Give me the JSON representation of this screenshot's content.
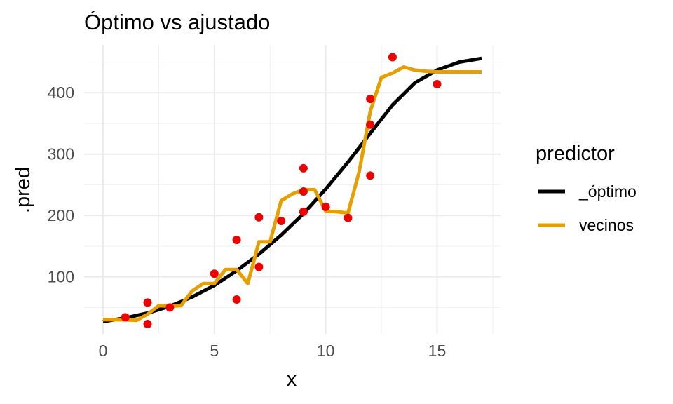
{
  "chart_data": {
    "type": "line",
    "title": "Óptimo vs ajustado",
    "xlabel": "x",
    "ylabel": ".pred",
    "xlim": [
      -0.85,
      17.85
    ],
    "ylim": [
      7,
      478
    ],
    "x_ticks": [
      0,
      5,
      10,
      15
    ],
    "x_tick_labels": [
      "0",
      "5",
      "10",
      "15"
    ],
    "y_ticks": [
      100,
      200,
      300,
      400
    ],
    "y_tick_labels": [
      "100",
      "200",
      "300",
      "400"
    ],
    "grid": true,
    "legend_title": "predictor",
    "legend_position": "right",
    "series": [
      {
        "name": "_óptimo",
        "color": "#000000",
        "x": [
          0,
          1,
          2,
          3,
          4,
          5,
          6,
          7,
          8,
          9,
          10,
          11,
          12,
          13,
          14,
          15,
          16,
          17
        ],
        "y": [
          27,
          33,
          41,
          52,
          67,
          86,
          110,
          137,
          168,
          203,
          243,
          287,
          334,
          380,
          416,
          437,
          450,
          456
        ]
      },
      {
        "name": "vecinos",
        "color": "#E69F00",
        "x": [
          0,
          0.5,
          1,
          1.5,
          2,
          2.5,
          3,
          3.5,
          4,
          4.5,
          5,
          5.5,
          6,
          6.5,
          7,
          7.5,
          8,
          8.5,
          9,
          9.5,
          10,
          10.5,
          11,
          11.5,
          12,
          12.5,
          13,
          13.5,
          14,
          14.5,
          15,
          15.5,
          16,
          16.5,
          17
        ],
        "y": [
          30,
          30,
          30,
          29,
          39,
          53,
          52,
          53,
          77,
          89,
          89,
          112,
          112,
          89,
          157,
          157,
          224,
          235,
          242,
          242,
          207,
          206,
          204,
          271,
          370,
          425,
          432,
          442,
          437,
          435,
          434,
          434,
          434,
          434,
          434
        ]
      }
    ],
    "points": {
      "color": "#EE0000",
      "x": [
        1,
        2,
        2,
        3,
        5,
        6,
        6,
        7,
        7,
        8,
        9,
        9,
        9,
        10,
        11,
        12,
        12,
        12,
        13,
        15
      ],
      "y": [
        34,
        58,
        23,
        50,
        105,
        160,
        63,
        197,
        116,
        191,
        277,
        239,
        206,
        214,
        196,
        390,
        348,
        265,
        458,
        414
      ]
    }
  }
}
